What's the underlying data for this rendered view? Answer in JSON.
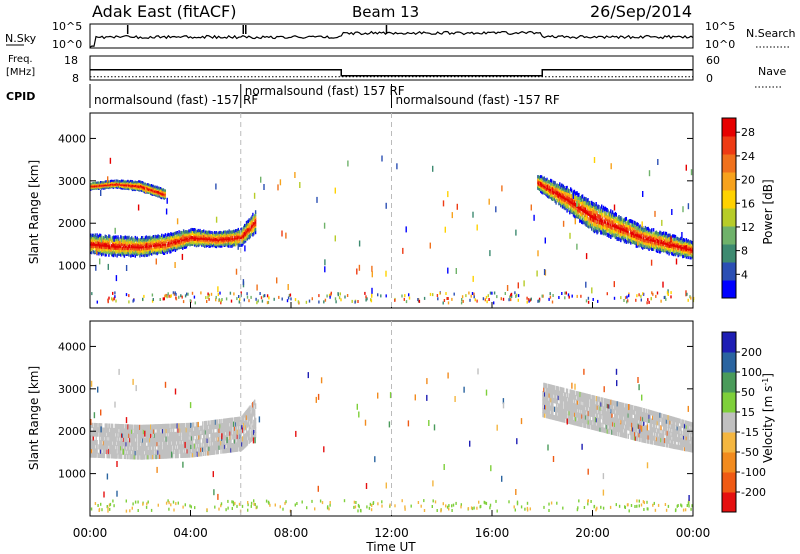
{
  "header": {
    "title": "Adak East (fitACF)",
    "beam": "Beam 13",
    "date": "26/Sep/2014"
  },
  "top_panels": {
    "nsky_label": "N.Sky",
    "nsearch_label": "N.Search",
    "freq_label_line1": "Freq.",
    "freq_label_line2": "[MHz]",
    "nave_label": "Nave",
    "cpid_label": "CPID",
    "nsky_ticks": [
      "10^5",
      "10^0"
    ],
    "nsearch_ticks": [
      "10^5",
      "10^0"
    ],
    "freq_ticks": [
      "18",
      "8"
    ],
    "nave_ticks": [
      "60",
      "0"
    ]
  },
  "cpid_segments": [
    {
      "label": "normalsound (fast) -157 RF",
      "start_hour": 0.0,
      "end_hour": 6.0
    },
    {
      "label": "normalsound (fast) 157 RF",
      "start_hour": 6.0,
      "end_hour": 12.0
    },
    {
      "label": "normalsound (fast) -157 RF",
      "start_hour": 12.0,
      "end_hour": 24.0
    }
  ],
  "power_colorbar": {
    "label": "Power [dB]",
    "ticks": [
      "4",
      "8",
      "12",
      "16",
      "20",
      "24",
      "28"
    ],
    "colors": [
      "#0000ff",
      "#2b4fb4",
      "#3d8a70",
      "#6fb26a",
      "#b7cc28",
      "#ffd200",
      "#f7a21c",
      "#f0711c",
      "#ee3b14",
      "#e60000"
    ]
  },
  "velocity_colorbar": {
    "label_main": "Velocity [m s",
    "label_sup": "-1",
    "label_end": "]",
    "ticks": [
      "200",
      "100",
      "50",
      "15",
      "-15",
      "-50",
      "-100",
      "-200"
    ],
    "colors": [
      "#1e1eb4",
      "#2a64a0",
      "#4a9b5a",
      "#7ecf3a",
      "#c0c0c0",
      "#f4b640",
      "#f28b1e",
      "#ef5a14",
      "#e51010"
    ]
  },
  "y_axis_label": "Slant Range [km]",
  "x_axis_label": "Time UT",
  "x_ticks": [
    "00:00",
    "04:00",
    "08:00",
    "12:00",
    "16:00",
    "20:00",
    "00:00"
  ],
  "y_ticks": [
    "1000",
    "2000",
    "3000",
    "4000"
  ],
  "chart_data": {
    "type": "heatmap",
    "x_range_hours": [
      0,
      24
    ],
    "y_range_km": [
      0,
      4600
    ],
    "frequency_MHz": [
      {
        "start_hour": 0.0,
        "end_hour": 10.0,
        "value": 13.5
      },
      {
        "start_hour": 10.0,
        "end_hour": 18.0,
        "value": 11.0
      },
      {
        "start_hour": 18.0,
        "end_hour": 24.0,
        "value": 13.5
      }
    ],
    "nave": [
      {
        "start_hour": 0.0,
        "end_hour": 24.0,
        "value": 3
      }
    ],
    "power_features": [
      {
        "name": "morning band",
        "hours": [
          0,
          1,
          2,
          3,
          4,
          5,
          6,
          6.6
        ],
        "center_km": [
          1550,
          1500,
          1480,
          1550,
          1700,
          1650,
          1700,
          2100
        ],
        "width_km": [
          400,
          400,
          380,
          380,
          350,
          300,
          350,
          450
        ]
      },
      {
        "name": "upper band",
        "hours": [
          0,
          1,
          2,
          3
        ],
        "center_km": [
          2900,
          2950,
          2900,
          2700
        ],
        "width_km": [
          150,
          150,
          200,
          200
        ]
      },
      {
        "name": "evening band",
        "hours": [
          17.8,
          19,
          20,
          21,
          22,
          23,
          24
        ],
        "center_km": [
          3000,
          2600,
          2200,
          1950,
          1700,
          1550,
          1400
        ],
        "width_km": [
          300,
          500,
          600,
          500,
          450,
          400,
          350
        ]
      }
    ],
    "velocity_features": [
      {
        "name": "morning band",
        "hours": [
          0,
          2,
          4,
          6,
          6.6
        ],
        "center_km": [
          1850,
          1800,
          1850,
          2000,
          2400
        ],
        "width_km": [
          700,
          700,
          700,
          700,
          800
        ],
        "value": 0
      },
      {
        "name": "evening band",
        "hours": [
          18,
          20,
          22,
          24
        ],
        "center_km": [
          2800,
          2500,
          2200,
          1900
        ],
        "width_km": [
          700,
          700,
          700,
          600
        ],
        "value": 0
      }
    ]
  }
}
